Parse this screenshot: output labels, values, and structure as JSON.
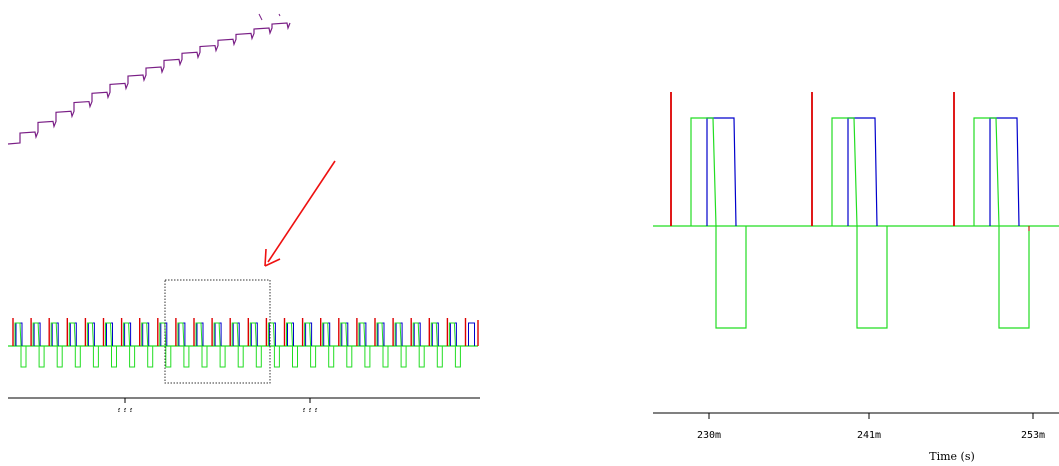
{
  "colors": {
    "ramp": "#7a1f86",
    "red": "#dd0000",
    "blue": "#0000cc",
    "green": "#22dd22",
    "arrow": "#ee1111",
    "axis": "#000000"
  },
  "chart_data": [
    {
      "type": "line",
      "description_of_view": "overview",
      "series": [
        {
          "values": [
            0,
            1,
            2,
            3,
            4,
            5,
            6,
            7,
            8,
            9,
            10,
            11,
            12,
            13,
            14,
            15
          ]
        },
        {
          "values": []
        },
        {
          "values": []
        },
        {
          "values": []
        }
      ],
      "x_tick_labels": [
        "???",
        "???"
      ],
      "pulse_periods": 26,
      "zoom_periods": 6
    },
    {
      "type": "line",
      "x_tick_labels": [
        "230m",
        "241m",
        "253m"
      ],
      "xlabel": "Time (s)",
      "periods": 3
    }
  ]
}
